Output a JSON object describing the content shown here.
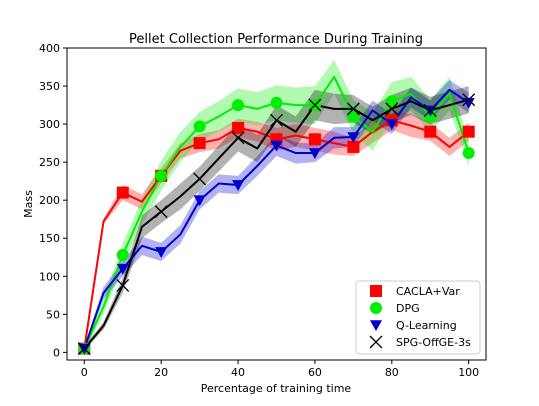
{
  "chart_data": {
    "type": "line",
    "title": "Pellet Collection Performance During Training",
    "xlabel": "Percentage of training time",
    "ylabel": "Mass",
    "xlim": [
      -4.5,
      104.5
    ],
    "ylim": [
      -10,
      400
    ],
    "xticks": [
      0,
      20,
      40,
      60,
      80,
      100
    ],
    "yticks": [
      0,
      50,
      100,
      150,
      200,
      250,
      300,
      350,
      400
    ],
    "grid": false,
    "legend_position": "lower-right",
    "x": [
      0,
      5,
      10,
      15,
      20,
      25,
      30,
      35,
      40,
      45,
      50,
      55,
      60,
      65,
      70,
      75,
      80,
      85,
      90,
      95,
      100
    ],
    "series": [
      {
        "name": "CACLA+Var",
        "color": "#ff0000",
        "marker": "square",
        "values": [
          5,
          172,
          210,
          198,
          232,
          265,
          275,
          280,
          295,
          290,
          280,
          285,
          280,
          275,
          270,
          290,
          305,
          298,
          290,
          270,
          290
        ],
        "lower": [
          2,
          168,
          200,
          188,
          222,
          255,
          263,
          268,
          283,
          277,
          265,
          270,
          265,
          260,
          258,
          275,
          292,
          283,
          278,
          258,
          278
        ],
        "upper": [
          8,
          176,
          220,
          208,
          242,
          275,
          287,
          292,
          307,
          303,
          295,
          300,
          295,
          290,
          282,
          305,
          318,
          313,
          302,
          282,
          302
        ],
        "marker_x": [
          0,
          10,
          20,
          30,
          40,
          50,
          60,
          70,
          80,
          90,
          100
        ]
      },
      {
        "name": "DPG",
        "color": "#00ee00",
        "marker": "circle",
        "values": [
          5,
          60,
          128,
          185,
          232,
          270,
          297,
          310,
          325,
          320,
          328,
          325,
          325,
          362,
          310,
          290,
          330,
          340,
          310,
          340,
          262
        ],
        "lower": [
          2,
          50,
          113,
          168,
          212,
          250,
          278,
          290,
          303,
          298,
          305,
          302,
          300,
          340,
          288,
          265,
          305,
          318,
          288,
          318,
          245
        ],
        "upper": [
          8,
          70,
          143,
          202,
          252,
          290,
          316,
          330,
          347,
          342,
          351,
          348,
          350,
          384,
          332,
          315,
          355,
          362,
          332,
          362,
          279
        ],
        "marker_x": [
          0,
          10,
          20,
          30,
          40,
          50,
          60,
          70,
          80,
          90,
          100
        ]
      },
      {
        "name": "Q-Learning",
        "color": "#0000cc",
        "marker": "triangle-down",
        "values": [
          5,
          78,
          110,
          140,
          132,
          155,
          200,
          222,
          220,
          245,
          272,
          262,
          262,
          282,
          283,
          318,
          300,
          335,
          318,
          345,
          328
        ],
        "lower": [
          2,
          70,
          100,
          128,
          120,
          143,
          188,
          210,
          208,
          232,
          258,
          248,
          250,
          268,
          270,
          305,
          287,
          322,
          305,
          332,
          315
        ],
        "upper": [
          8,
          86,
          120,
          152,
          144,
          167,
          212,
          234,
          232,
          258,
          286,
          276,
          274,
          296,
          296,
          331,
          313,
          348,
          331,
          358,
          341
        ],
        "marker_x": [
          0,
          10,
          20,
          30,
          40,
          50,
          60,
          70,
          80,
          90,
          100
        ]
      },
      {
        "name": "SPG-OffGE-3s",
        "color": "#000000",
        "marker": "x",
        "values": [
          5,
          35,
          88,
          165,
          185,
          205,
          228,
          255,
          282,
          268,
          305,
          290,
          325,
          320,
          320,
          305,
          320,
          330,
          318,
          325,
          332
        ],
        "lower": [
          2,
          30,
          78,
          150,
          170,
          188,
          212,
          238,
          264,
          250,
          285,
          270,
          305,
          300,
          302,
          287,
          302,
          312,
          300,
          307,
          314
        ],
        "upper": [
          8,
          40,
          98,
          180,
          200,
          222,
          244,
          272,
          300,
          286,
          325,
          310,
          345,
          340,
          338,
          323,
          338,
          348,
          336,
          343,
          350
        ],
        "marker_x": [
          0,
          10,
          20,
          30,
          40,
          50,
          60,
          70,
          80,
          90,
          100
        ]
      }
    ]
  }
}
